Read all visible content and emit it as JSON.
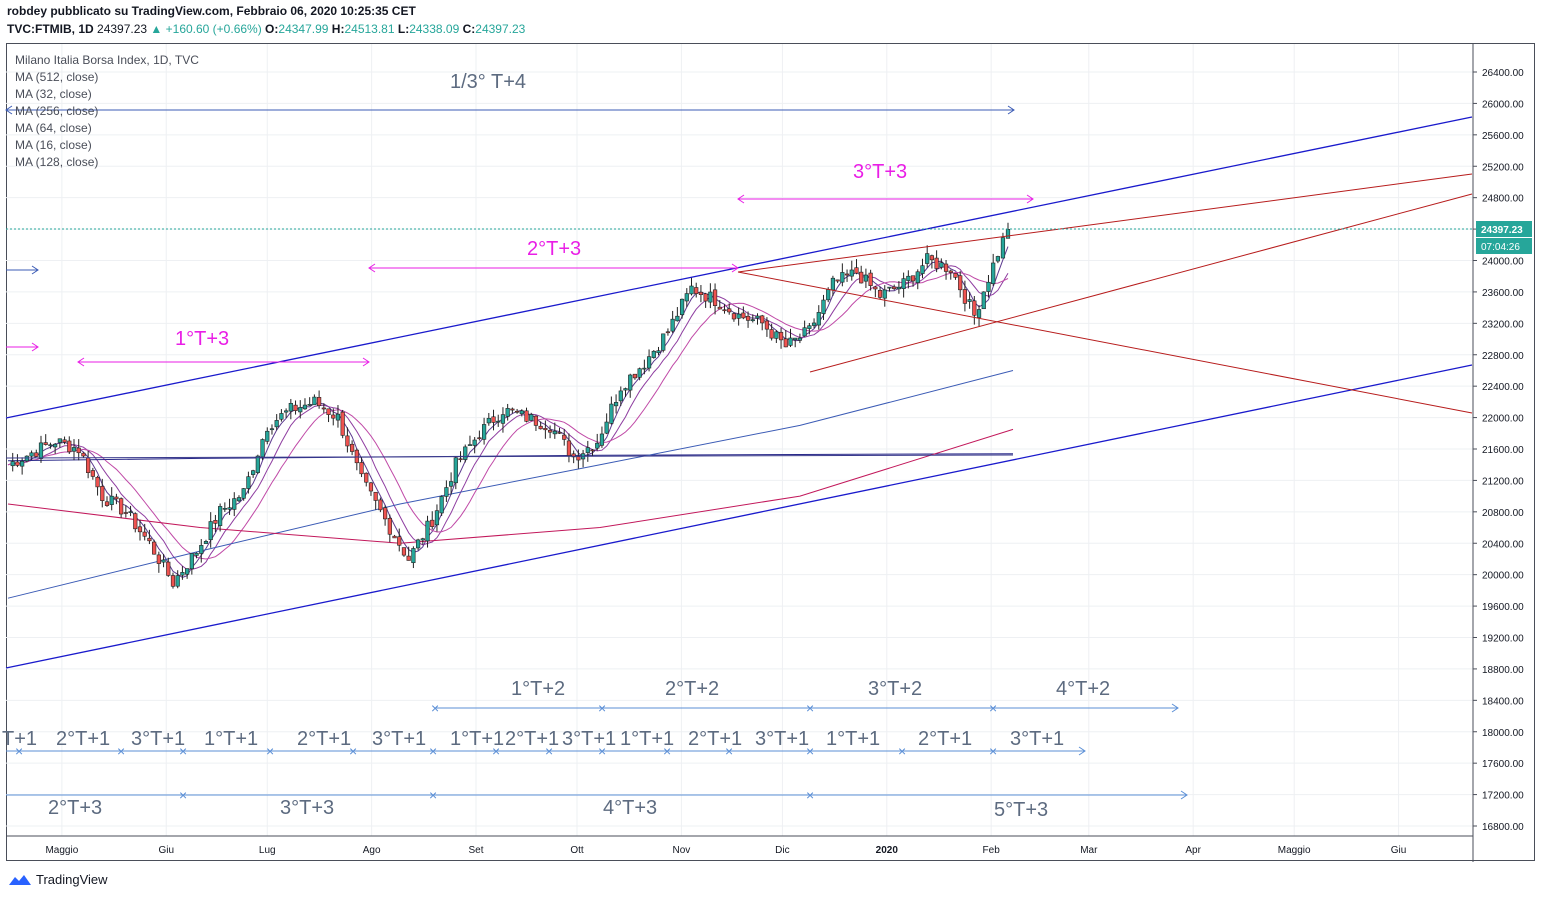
{
  "header": {
    "line1": "robdey pubblicato su TradingView.com, Febbraio 06, 2020 10:25:35 CET",
    "symbol": "TVC:FTMIB, 1D",
    "last": "24397.23",
    "change": "▲ +160.60 (+0.66%)",
    "o_label": "O:",
    "o": "24347.99",
    "h_label": "H:",
    "h": "24513.81",
    "l_label": "L:",
    "l": "24338.09",
    "c_label": "C:",
    "c": "24397.23"
  },
  "indicators": [
    "Milano Italia Borsa Index, 1D, TVC",
    "MA (512, close)",
    "MA (32, close)",
    "MA (256, close)",
    "MA (64, close)",
    "MA (16, close)",
    "MA (128, close)"
  ],
  "price_tags": {
    "last": "24397.23",
    "countdown": "07:04:26"
  },
  "footer": {
    "brand": "TradingView"
  },
  "colors": {
    "up": "#26a69a",
    "down": "#ef5350",
    "blue_line": "#1a1acc",
    "red_line": "#b71c1c",
    "magenta": "#e91ee6",
    "annot": "#5d6b80"
  },
  "chart_data": {
    "type": "candlestick",
    "title": "Milano Italia Borsa Index, 1D, TVC",
    "y_axis": {
      "min": 16800,
      "max": 26400,
      "ticks": [
        "26400.00",
        "26000.00",
        "25600.00",
        "25200.00",
        "24800.00",
        "24400.00",
        "24000.00",
        "23600.00",
        "23200.00",
        "22800.00",
        "22400.00",
        "22000.00",
        "21600.00",
        "21200.00",
        "20800.00",
        "20400.00",
        "20000.00",
        "19600.00",
        "19200.00",
        "18800.00",
        "18400.00",
        "18000.00",
        "17600.00",
        "17200.00",
        "16800.00"
      ]
    },
    "x_axis": {
      "labels": [
        "Maggio",
        "Giu",
        "Lug",
        "Ago",
        "Set",
        "Ott",
        "Nov",
        "Dic",
        "2020",
        "Feb",
        "Mar",
        "Apr",
        "Maggio",
        "Giu"
      ]
    },
    "close_path": [
      [
        "2019-04-15",
        21400
      ],
      [
        "2019-04-29",
        21700
      ],
      [
        "2019-05-06",
        21600
      ],
      [
        "2019-05-13",
        21000
      ],
      [
        "2019-05-20",
        20800
      ],
      [
        "2019-05-27",
        20400
      ],
      [
        "2019-06-03",
        19900
      ],
      [
        "2019-06-10",
        20300
      ],
      [
        "2019-06-17",
        20800
      ],
      [
        "2019-06-24",
        21050
      ],
      [
        "2019-07-01",
        21900
      ],
      [
        "2019-07-08",
        22100
      ],
      [
        "2019-07-15",
        22200
      ],
      [
        "2019-07-22",
        22000
      ],
      [
        "2019-07-29",
        21200
      ],
      [
        "2019-08-05",
        20700
      ],
      [
        "2019-08-12",
        20200
      ],
      [
        "2019-08-19",
        20700
      ],
      [
        "2019-08-26",
        21400
      ],
      [
        "2019-09-02",
        21800
      ],
      [
        "2019-09-09",
        22100
      ],
      [
        "2019-09-16",
        22000
      ],
      [
        "2019-09-23",
        21900
      ],
      [
        "2019-09-30",
        21500
      ],
      [
        "2019-10-07",
        21700
      ],
      [
        "2019-10-14",
        22400
      ],
      [
        "2019-10-21",
        22700
      ],
      [
        "2019-10-28",
        23100
      ],
      [
        "2019-11-04",
        23650
      ],
      [
        "2019-11-11",
        23500
      ],
      [
        "2019-11-18",
        23300
      ],
      [
        "2019-11-25",
        23200
      ],
      [
        "2019-12-02",
        22900
      ],
      [
        "2019-12-09",
        23100
      ],
      [
        "2019-12-16",
        23700
      ],
      [
        "2019-12-23",
        23850
      ],
      [
        "2019-12-30",
        23550
      ],
      [
        "2020-01-06",
        23700
      ],
      [
        "2020-01-13",
        24000
      ],
      [
        "2020-01-20",
        23900
      ],
      [
        "2020-01-27",
        23300
      ],
      [
        "2020-02-03",
        24100
      ],
      [
        "2020-02-06",
        24397
      ]
    ],
    "moving_averages": [
      {
        "name": "MA (512, close)",
        "values": [
          21450,
          21480,
          21500,
          21520,
          21530,
          21540
        ]
      },
      {
        "name": "MA (256, close)",
        "values": [
          19700,
          20300,
          20900,
          21400,
          21900,
          22600
        ]
      },
      {
        "name": "MA (128, close)",
        "values": [
          20900,
          20600,
          20400,
          20600,
          21000,
          21850
        ]
      }
    ],
    "annotations": [
      "1/3° T+4",
      "3°T+3",
      "2°T+3",
      "1°T+3",
      "1°T+2",
      "2°T+2",
      "3°T+2",
      "4°T+2",
      "T+1",
      "2°T+1",
      "3°T+1",
      "1°T+1",
      "2°T+1",
      "3°T+1",
      "1°T+1",
      "2°T+1",
      "3°T+1",
      "1°T+1",
      "2°T+1",
      "3°T+1",
      "1°T+1",
      "2°T+1",
      "3°T+1",
      "2°T+3",
      "3°T+3",
      "4°T+3",
      "5°T+3"
    ]
  }
}
